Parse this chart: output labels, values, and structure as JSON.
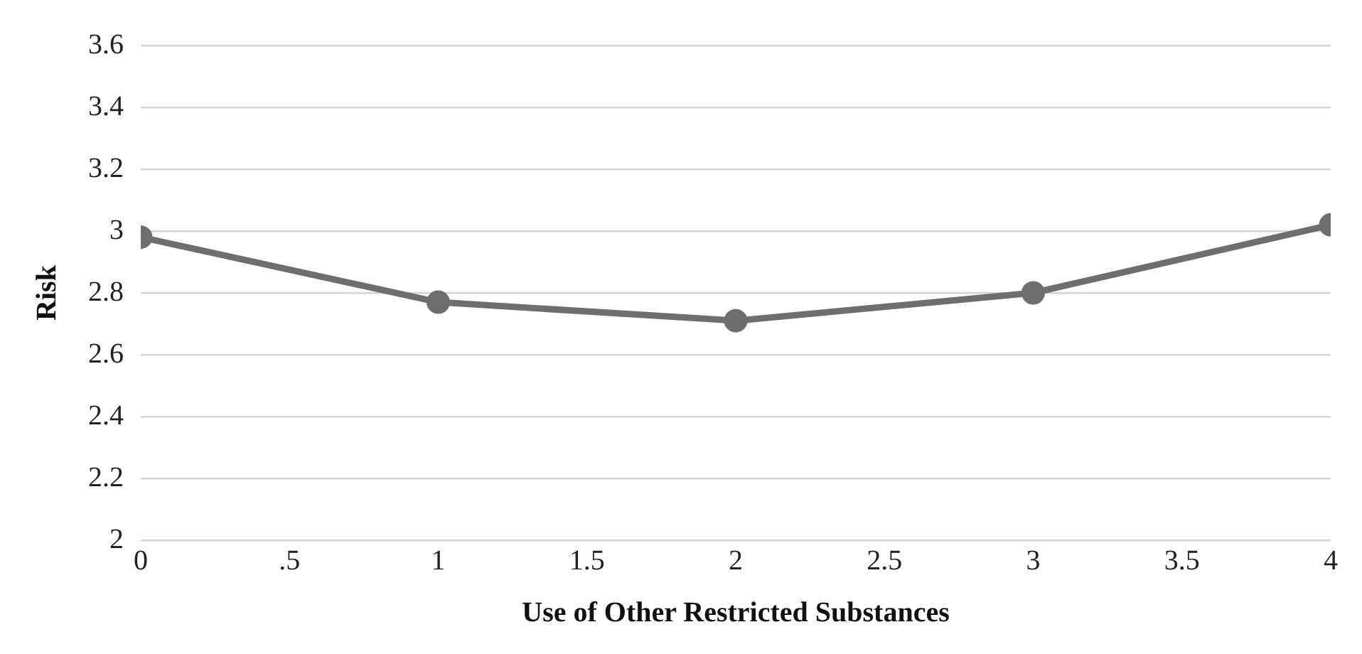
{
  "chart_data": {
    "type": "line",
    "xlabel": "Use of Other Restricted Substances",
    "ylabel": "Risk",
    "x": [
      0,
      1,
      2,
      3,
      4
    ],
    "series": [
      {
        "color": "#6e6e6e",
        "values": [
          2.98,
          2.77,
          2.71,
          2.8,
          3.02
        ]
      }
    ],
    "xlim": [
      0,
      4
    ],
    "xticks": [
      0,
      {
        "value": 0.5,
        "label": ".5"
      },
      1,
      1.5,
      2,
      2.5,
      3,
      3.5,
      4
    ],
    "ylim": [
      2,
      3.6
    ],
    "yticks": [
      2,
      2.2,
      2.4,
      2.6,
      2.8,
      3,
      3.2,
      3.4,
      3.6
    ],
    "grid": "y",
    "marker": "circle",
    "line_style": "solid",
    "legend": false
  }
}
